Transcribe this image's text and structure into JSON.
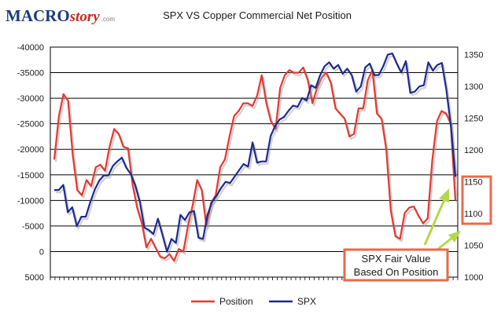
{
  "logo": {
    "part1": "MACRO",
    "part2": "story",
    "part3": ".com"
  },
  "chart_data": {
    "type": "line",
    "title": "SPX VS Copper Commercial Net Position",
    "left_axis": {
      "ticks": [
        -40000,
        -35000,
        -30000,
        -25000,
        -20000,
        -15000,
        -10000,
        -5000,
        0,
        5000
      ],
      "tick_labels": [
        "-40000",
        "-35000",
        "-30000",
        "-25000",
        "-20000",
        "-15000",
        "-10000",
        "-5000",
        "0",
        "5000"
      ],
      "reversed": true,
      "range": [
        5000,
        -40000
      ]
    },
    "right_axis": {
      "ticks": [
        1000,
        1050,
        1100,
        1150,
        1200,
        1250,
        1300,
        1350
      ],
      "tick_labels": [
        "1000",
        "1050",
        "1100",
        "1150",
        "1200",
        "1250",
        "1300",
        "1350"
      ],
      "range": [
        1000,
        1362
      ]
    },
    "grid": true,
    "legend_position": "bottom",
    "series": [
      {
        "name": "Position",
        "axis": "left",
        "color": "#e03a32",
        "values": [
          -18000,
          -26500,
          -30800,
          -29500,
          -19000,
          -12000,
          -11000,
          -14000,
          -12800,
          -16500,
          -17000,
          -15800,
          -20500,
          -24000,
          -23000,
          -20500,
          -20200,
          -13000,
          -8500,
          -5500,
          -800,
          -2500,
          -700,
          1000,
          1300,
          500,
          1800,
          -500,
          0,
          -5000,
          -9000,
          -14000,
          -12000,
          -5000,
          -9500,
          -11000,
          -16500,
          -18000,
          -22500,
          -26500,
          -27500,
          -29000,
          -29000,
          -28500,
          -30500,
          -34500,
          -29000,
          -25500,
          -24000,
          -32000,
          -34500,
          -35500,
          -35000,
          -35000,
          -36000,
          -33500,
          -29000,
          -32000,
          -34000,
          -35000,
          -33000,
          -28000,
          -27000,
          -26000,
          -22500,
          -23000,
          -28000,
          -28000,
          -33500,
          -35500,
          -27000,
          -26000,
          -20000,
          -8000,
          -3000,
          -2500,
          -7500,
          -8600,
          -8800,
          -7000,
          -5500,
          -6500,
          -18000,
          -25500,
          -27500,
          -27000,
          -25000,
          -10000
        ]
      },
      {
        "name": "SPX",
        "axis": "right",
        "color": "#1c2a8c",
        "values": [
          1137,
          1137,
          1145,
          1102,
          1110,
          1080,
          1095,
          1095,
          1118,
          1138,
          1152,
          1160,
          1160,
          1175,
          1182,
          1188,
          1172,
          1162,
          1144,
          1118,
          1078,
          1074,
          1068,
          1092,
          1067,
          1040,
          1060,
          1054,
          1098,
          1090,
          1102,
          1104,
          1062,
          1060,
          1098,
          1118,
          1128,
          1140,
          1150,
          1148,
          1158,
          1168,
          1178,
          1174,
          1212,
          1180,
          1182,
          1182,
          1222,
          1238,
          1248,
          1252,
          1262,
          1270,
          1268,
          1282,
          1278,
          1302,
          1298,
          1318,
          1332,
          1338,
          1328,
          1334,
          1320,
          1328,
          1318,
          1292,
          1300,
          1330,
          1336,
          1318,
          1318,
          1332,
          1350,
          1352,
          1336,
          1322,
          1340,
          1290,
          1292,
          1300,
          1302,
          1338,
          1325,
          1334,
          1337,
          1295,
          1238,
          1158
        ]
      }
    ]
  },
  "annotation": {
    "line1": "SPX Fair Value",
    "line2": "Based On Position",
    "box_color": "#e86a4b",
    "arrow_color": "#b3d94a"
  }
}
